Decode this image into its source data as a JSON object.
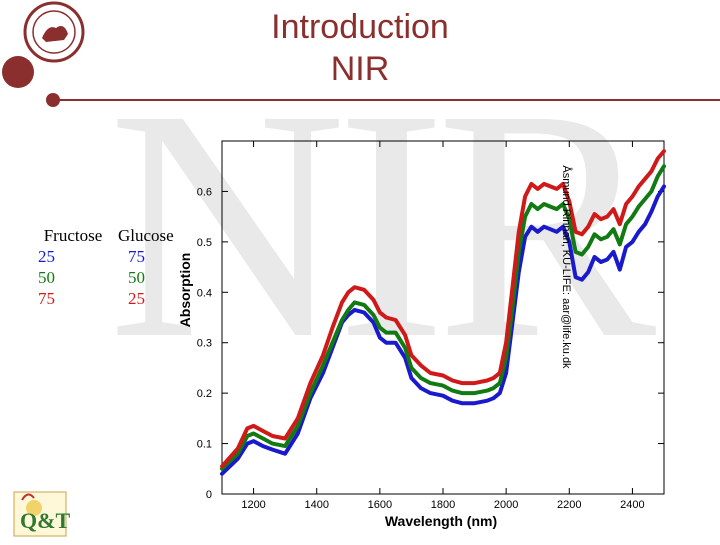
{
  "slide": {
    "title_line1": "Introduction",
    "title_line2": "NIR",
    "watermark": "NIR",
    "credit": "Åsmund Rinnan, KU-LIFE: aar@life.ku.dk",
    "logo_text": "Q&T"
  },
  "legend": {
    "col1": "Fructose",
    "col2": "Glucose",
    "rows": [
      {
        "fructose": "25",
        "glucose": "75",
        "color": "#1a1acc"
      },
      {
        "fructose": "50",
        "glucose": "50",
        "color": "#127a12"
      },
      {
        "fructose": "75",
        "glucose": "25",
        "color": "#d01a1a"
      }
    ]
  },
  "chart_data": {
    "type": "line",
    "title": "",
    "xlabel": "Wavelength (nm)",
    "ylabel": "Absorption",
    "xlim": [
      1100,
      2500
    ],
    "ylim": [
      0,
      0.7
    ],
    "xticks": [
      1200,
      1400,
      1600,
      1800,
      2000,
      2200,
      2400
    ],
    "yticks": [
      0,
      0.1,
      0.2,
      0.3,
      0.4,
      0.5,
      0.6
    ],
    "ytick_labels": [
      "0",
      "0.1",
      "0.2",
      "0.3",
      "0.4",
      "0.5",
      "0.6"
    ],
    "x": [
      1100,
      1150,
      1180,
      1200,
      1230,
      1260,
      1300,
      1340,
      1380,
      1420,
      1450,
      1480,
      1500,
      1520,
      1550,
      1580,
      1600,
      1620,
      1650,
      1680,
      1700,
      1730,
      1760,
      1800,
      1830,
      1860,
      1900,
      1940,
      1960,
      1980,
      2000,
      2020,
      2040,
      2060,
      2080,
      2100,
      2120,
      2140,
      2160,
      2180,
      2200,
      2220,
      2240,
      2260,
      2280,
      2300,
      2320,
      2340,
      2360,
      2380,
      2400,
      2420,
      2440,
      2460,
      2480,
      2500
    ],
    "series": [
      {
        "name": "Fructose 25 / Glucose 75",
        "color": "#1a1acc",
        "values": [
          0.04,
          0.07,
          0.1,
          0.105,
          0.095,
          0.088,
          0.08,
          0.12,
          0.19,
          0.24,
          0.29,
          0.34,
          0.355,
          0.365,
          0.36,
          0.34,
          0.31,
          0.3,
          0.3,
          0.27,
          0.23,
          0.21,
          0.2,
          0.195,
          0.185,
          0.18,
          0.18,
          0.185,
          0.19,
          0.2,
          0.24,
          0.34,
          0.44,
          0.51,
          0.53,
          0.52,
          0.53,
          0.525,
          0.52,
          0.53,
          0.5,
          0.43,
          0.425,
          0.44,
          0.47,
          0.46,
          0.465,
          0.48,
          0.445,
          0.49,
          0.5,
          0.52,
          0.535,
          0.56,
          0.59,
          0.61
        ]
      },
      {
        "name": "Fructose 50 / Glucose 50",
        "color": "#127a12",
        "values": [
          0.05,
          0.08,
          0.115,
          0.12,
          0.11,
          0.1,
          0.095,
          0.135,
          0.2,
          0.255,
          0.3,
          0.345,
          0.365,
          0.38,
          0.375,
          0.355,
          0.33,
          0.32,
          0.32,
          0.29,
          0.25,
          0.23,
          0.22,
          0.215,
          0.205,
          0.2,
          0.2,
          0.205,
          0.21,
          0.22,
          0.27,
          0.37,
          0.48,
          0.55,
          0.575,
          0.565,
          0.575,
          0.57,
          0.565,
          0.575,
          0.545,
          0.48,
          0.475,
          0.49,
          0.515,
          0.505,
          0.51,
          0.525,
          0.495,
          0.535,
          0.55,
          0.57,
          0.585,
          0.6,
          0.63,
          0.65
        ]
      },
      {
        "name": "Fructose 75 / Glucose 25",
        "color": "#d01a1a",
        "values": [
          0.055,
          0.09,
          0.13,
          0.135,
          0.125,
          0.115,
          0.11,
          0.15,
          0.22,
          0.275,
          0.33,
          0.38,
          0.4,
          0.41,
          0.405,
          0.385,
          0.36,
          0.35,
          0.345,
          0.315,
          0.275,
          0.255,
          0.24,
          0.235,
          0.225,
          0.22,
          0.22,
          0.225,
          0.23,
          0.24,
          0.3,
          0.41,
          0.52,
          0.59,
          0.615,
          0.605,
          0.615,
          0.61,
          0.605,
          0.615,
          0.58,
          0.52,
          0.515,
          0.53,
          0.555,
          0.545,
          0.55,
          0.565,
          0.535,
          0.575,
          0.59,
          0.61,
          0.625,
          0.64,
          0.665,
          0.68
        ]
      }
    ]
  },
  "colors": {
    "accent": "#8b2e2e",
    "watermark": "#e9e9e9"
  }
}
